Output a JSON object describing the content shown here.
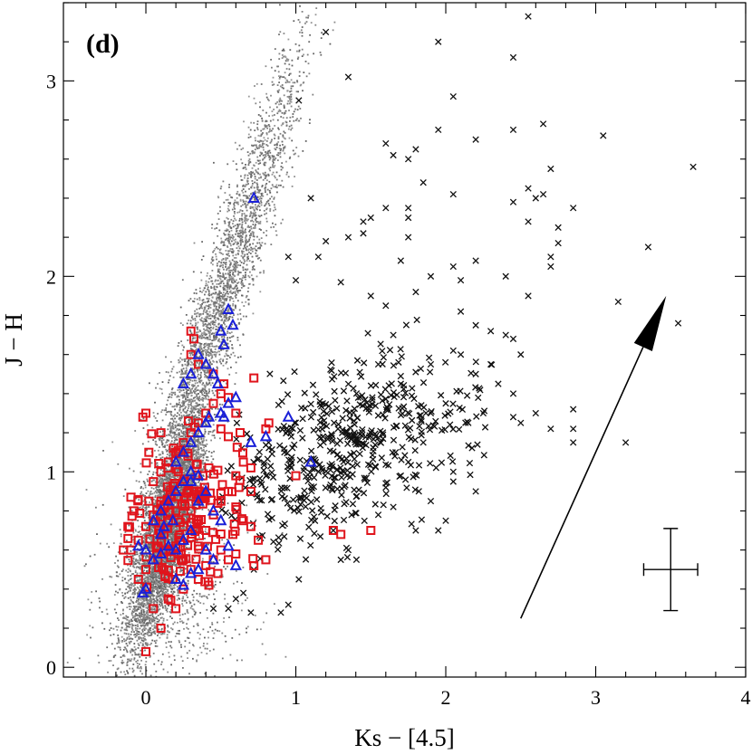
{
  "chart_data": {
    "type": "scatter",
    "panel_label": "(d)",
    "xlabel": "Ks − [4.5]",
    "ylabel": "J − H",
    "xlim": [
      -0.55,
      4.0
    ],
    "ylim": [
      -0.05,
      3.4
    ],
    "x_ticks": [
      {
        "value": 0,
        "label": "0"
      },
      {
        "value": 1,
        "label": "1"
      },
      {
        "value": 2,
        "label": "2"
      },
      {
        "value": 3,
        "label": "3"
      },
      {
        "value": 4,
        "label": "4"
      }
    ],
    "y_ticks": [
      {
        "value": 0,
        "label": "0"
      },
      {
        "value": 1,
        "label": "1"
      },
      {
        "value": 2,
        "label": "2"
      },
      {
        "value": 3,
        "label": "3"
      }
    ],
    "colors": {
      "field_points": "#8c8c8c",
      "crosses": "#111111",
      "squares": "#e0141c",
      "triangles": "#1a20d8",
      "axes": "#000000"
    },
    "reddening_vector": {
      "x0": 2.5,
      "y0": 0.25,
      "x1": 3.47,
      "y1": 1.9
    },
    "typical_error": {
      "x": 3.5,
      "y": 0.5,
      "xerr": 0.18,
      "yerr": 0.21
    },
    "series": [
      {
        "name": "field stars",
        "marker": "dot",
        "note": "dense grey cloud, generated from these density components",
        "components": [
          {
            "n": 5200,
            "cx": 0.15,
            "cy": 0.72,
            "sx": 0.14,
            "sy": 0.3,
            "dir": 0.78,
            "slope": 2.3
          },
          {
            "n": 2600,
            "cx": 0.45,
            "cy": 1.75,
            "sx": 0.16,
            "sy": 0.55,
            "dir": 1.0,
            "slope": 2.3
          },
          {
            "n": 700,
            "cx": 0.2,
            "cy": 0.4,
            "sx": 0.25,
            "sy": 0.3,
            "dir": 0.0,
            "slope": 0.0
          },
          {
            "n": 500,
            "cx": 0.75,
            "cy": 2.6,
            "sx": 0.15,
            "sy": 0.45,
            "dir": 1.0,
            "slope": 2.3
          }
        ]
      },
      {
        "name": "crosses",
        "marker": "x",
        "points": [
          [
            1.2,
            3.25
          ],
          [
            2.55,
            3.33
          ],
          [
            1.95,
            3.2
          ],
          [
            1.35,
            3.02
          ],
          [
            2.45,
            3.12
          ],
          [
            1.02,
            2.9
          ],
          [
            2.05,
            2.92
          ],
          [
            1.95,
            2.75
          ],
          [
            2.45,
            2.75
          ],
          [
            2.65,
            2.78
          ],
          [
            3.05,
            2.72
          ],
          [
            2.2,
            2.7
          ],
          [
            1.6,
            2.68
          ],
          [
            1.8,
            2.65
          ],
          [
            1.65,
            2.62
          ],
          [
            1.75,
            2.6
          ],
          [
            2.7,
            2.55
          ],
          [
            3.65,
            2.56
          ],
          [
            2.55,
            2.45
          ],
          [
            1.85,
            2.48
          ],
          [
            2.6,
            2.4
          ],
          [
            2.05,
            2.42
          ],
          [
            2.45,
            2.38
          ],
          [
            2.65,
            2.42
          ],
          [
            1.1,
            2.4
          ],
          [
            1.6,
            2.35
          ],
          [
            2.85,
            2.35
          ],
          [
            1.5,
            2.3
          ],
          [
            1.45,
            2.28
          ],
          [
            2.55,
            2.28
          ],
          [
            1.75,
            2.3
          ],
          [
            2.75,
            2.25
          ],
          [
            3.35,
            2.15
          ],
          [
            2.75,
            2.17
          ],
          [
            2.7,
            2.1
          ],
          [
            1.35,
            2.2
          ],
          [
            1.2,
            2.18
          ],
          [
            1.75,
            2.2
          ],
          [
            2.2,
            2.08
          ],
          [
            2.05,
            2.05
          ],
          [
            1.7,
            2.08
          ],
          [
            1.15,
            2.1
          ],
          [
            2.1,
            1.98
          ],
          [
            2.7,
            2.05
          ],
          [
            1.9,
            2.0
          ],
          [
            1.0,
            1.98
          ],
          [
            1.3,
            1.97
          ],
          [
            0.95,
            2.1
          ],
          [
            2.4,
            2.0
          ],
          [
            3.15,
            1.87
          ],
          [
            3.55,
            1.76
          ],
          [
            2.55,
            1.9
          ],
          [
            1.8,
            1.92
          ],
          [
            1.6,
            1.85
          ],
          [
            1.5,
            1.9
          ],
          [
            2.2,
            1.75
          ],
          [
            2.1,
            1.82
          ],
          [
            2.4,
            1.7
          ],
          [
            2.3,
            1.72
          ],
          [
            2.45,
            1.68
          ],
          [
            2.5,
            1.6
          ],
          [
            2.05,
            1.62
          ],
          [
            1.9,
            1.55
          ],
          [
            2.2,
            1.5
          ],
          [
            2.35,
            1.45
          ],
          [
            2.45,
            1.4
          ],
          [
            2.6,
            1.3
          ],
          [
            2.85,
            1.32
          ],
          [
            2.85,
            1.22
          ],
          [
            2.85,
            1.15
          ],
          [
            3.2,
            1.15
          ],
          [
            2.7,
            1.22
          ],
          [
            2.5,
            1.25
          ],
          [
            2.45,
            1.28
          ],
          [
            2.25,
            1.3
          ],
          [
            2.0,
            1.35
          ],
          [
            1.7,
            1.45
          ],
          [
            1.85,
            1.15
          ],
          [
            1.75,
            1.05
          ],
          [
            2.05,
            1.0
          ],
          [
            2.2,
            0.9
          ],
          [
            2.05,
            0.95
          ],
          [
            1.9,
            0.85
          ],
          [
            1.65,
            0.82
          ],
          [
            1.95,
            0.7
          ],
          [
            2.0,
            0.75
          ],
          [
            1.8,
            0.7
          ],
          [
            1.55,
            0.78
          ],
          [
            1.3,
            0.55
          ],
          [
            1.35,
            0.6
          ],
          [
            1.25,
            0.7
          ],
          [
            0.9,
            0.28
          ],
          [
            0.95,
            0.32
          ],
          [
            1.02,
            0.45
          ],
          [
            0.72,
            0.5
          ],
          [
            0.6,
            0.35
          ],
          [
            0.65,
            0.38
          ],
          [
            0.45,
            0.3
          ],
          [
            0.55,
            0.3
          ],
          [
            0.7,
            0.28
          ],
          [
            1.6,
            0.92
          ],
          [
            1.7,
            0.98
          ],
          [
            1.5,
            1.2
          ],
          [
            1.55,
            1.55
          ],
          [
            1.65,
            1.7
          ],
          [
            2.3,
            1.55
          ],
          [
            2.1,
            1.6
          ],
          [
            1.75,
            2.35
          ],
          [
            1.45,
            2.22
          ],
          [
            2.15,
            1.25
          ],
          [
            1.9,
            1.3
          ]
        ],
        "cluster": {
          "n": 540,
          "cx": 1.35,
          "cy": 1.12,
          "sx": 0.42,
          "sy": 0.24,
          "rho": 0.45,
          "xmin": 0.5,
          "xmax": 2.4,
          "ymin": 0.5,
          "ymax": 2.0
        }
      },
      {
        "name": "squares",
        "marker": "square",
        "points": [
          [
            0.0,
            0.08
          ],
          [
            0.1,
            0.2
          ],
          [
            0.05,
            0.3
          ],
          [
            0.15,
            0.35
          ],
          [
            0.2,
            0.3
          ],
          [
            0.25,
            0.4
          ],
          [
            -0.05,
            0.45
          ],
          [
            0.0,
            0.5
          ],
          [
            0.08,
            0.55
          ],
          [
            0.12,
            0.5
          ],
          [
            0.18,
            0.45
          ],
          [
            0.3,
            0.5
          ],
          [
            0.35,
            0.45
          ],
          [
            0.4,
            0.52
          ],
          [
            0.45,
            0.55
          ],
          [
            0.5,
            0.6
          ],
          [
            0.55,
            0.55
          ],
          [
            0.6,
            0.58
          ],
          [
            0.48,
            0.48
          ],
          [
            0.42,
            0.42
          ],
          [
            -0.1,
            0.6
          ],
          [
            -0.05,
            0.65
          ],
          [
            0.0,
            0.72
          ],
          [
            -0.12,
            0.72
          ],
          [
            -0.15,
            0.6
          ],
          [
            -0.08,
            0.8
          ],
          [
            -0.1,
            0.87
          ],
          [
            0.05,
            0.78
          ],
          [
            0.1,
            0.85
          ],
          [
            0.15,
            0.75
          ],
          [
            0.2,
            0.8
          ],
          [
            0.25,
            0.72
          ],
          [
            0.3,
            0.8
          ],
          [
            0.35,
            0.75
          ],
          [
            0.4,
            0.7
          ],
          [
            0.45,
            0.78
          ],
          [
            0.5,
            0.85
          ],
          [
            0.55,
            0.9
          ],
          [
            0.6,
            0.82
          ],
          [
            0.65,
            0.75
          ],
          [
            0.7,
            0.72
          ],
          [
            0.75,
            0.65
          ],
          [
            0.72,
            0.52
          ],
          [
            0.58,
            0.68
          ],
          [
            0.05,
            0.95
          ],
          [
            0.1,
            1.0
          ],
          [
            0.15,
            1.05
          ],
          [
            0.2,
            1.1
          ],
          [
            0.25,
            1.15
          ],
          [
            0.3,
            1.2
          ],
          [
            0.35,
            1.25
          ],
          [
            0.4,
            1.3
          ],
          [
            0.45,
            1.35
          ],
          [
            0.5,
            1.4
          ],
          [
            0.55,
            1.38
          ],
          [
            0.6,
            1.3
          ],
          [
            0.65,
            1.05
          ],
          [
            0.7,
            1.02
          ],
          [
            0.02,
            1.1
          ],
          [
            0.0,
            1.3
          ],
          [
            -0.02,
            1.28
          ],
          [
            0.32,
            1.68
          ],
          [
            0.3,
            1.72
          ],
          [
            0.3,
            1.6
          ],
          [
            0.35,
            1.55
          ],
          [
            0.45,
            1.5
          ],
          [
            0.52,
            1.45
          ],
          [
            0.72,
            1.48
          ],
          [
            0.82,
            1.25
          ],
          [
            0.8,
            1.22
          ],
          [
            1.0,
            0.98
          ],
          [
            1.25,
            0.7
          ],
          [
            1.3,
            0.68
          ],
          [
            1.5,
            0.7
          ],
          [
            0.8,
            0.55
          ],
          [
            0.7,
            0.9
          ],
          [
            0.62,
            0.92
          ],
          [
            0.55,
            1.18
          ],
          [
            0.5,
            1.22
          ],
          [
            0.25,
            0.95
          ],
          [
            0.28,
            0.9
          ],
          [
            0.08,
            0.62
          ],
          [
            0.12,
            0.68
          ],
          [
            0.2,
            0.62
          ],
          [
            0.22,
            0.58
          ],
          [
            0.16,
            0.88
          ],
          [
            0.1,
            1.2
          ],
          [
            0.38,
            0.98
          ],
          [
            0.42,
            1.02
          ],
          [
            0.6,
            0.98
          ],
          [
            0.25,
            0.55
          ],
          [
            0.35,
            0.62
          ],
          [
            0.02,
            0.85
          ]
        ],
        "cluster": {
          "n": 140,
          "cx": 0.25,
          "cy": 0.78,
          "sx": 0.18,
          "sy": 0.22,
          "rho": 0.25,
          "xmin": -0.2,
          "xmax": 0.75,
          "ymin": 0.25,
          "ymax": 1.4
        }
      },
      {
        "name": "triangles",
        "marker": "triangle",
        "points": [
          [
            0.72,
            2.4
          ],
          [
            0.55,
            1.83
          ],
          [
            0.58,
            1.75
          ],
          [
            0.5,
            1.72
          ],
          [
            0.52,
            1.65
          ],
          [
            0.35,
            1.6
          ],
          [
            0.4,
            1.55
          ],
          [
            0.45,
            1.5
          ],
          [
            0.48,
            1.45
          ],
          [
            0.3,
            1.5
          ],
          [
            0.25,
            1.45
          ],
          [
            0.55,
            1.35
          ],
          [
            0.6,
            1.38
          ],
          [
            0.5,
            1.3
          ],
          [
            0.52,
            1.28
          ],
          [
            0.4,
            1.25
          ],
          [
            0.42,
            1.28
          ],
          [
            0.35,
            1.2
          ],
          [
            0.3,
            1.15
          ],
          [
            0.25,
            1.1
          ],
          [
            0.2,
            1.05
          ],
          [
            0.95,
            1.28
          ],
          [
            0.8,
            1.18
          ],
          [
            0.7,
            1.15
          ],
          [
            1.1,
            1.05
          ],
          [
            0.3,
            1.0
          ],
          [
            0.25,
            0.95
          ],
          [
            0.2,
            0.9
          ],
          [
            0.15,
            0.85
          ],
          [
            0.1,
            0.8
          ],
          [
            0.05,
            0.75
          ],
          [
            0.35,
            0.85
          ],
          [
            0.4,
            0.9
          ],
          [
            0.45,
            0.8
          ],
          [
            0.5,
            0.75
          ],
          [
            0.3,
            0.7
          ],
          [
            0.25,
            0.65
          ],
          [
            0.2,
            0.6
          ],
          [
            0.15,
            0.62
          ],
          [
            0.1,
            0.58
          ],
          [
            0.05,
            0.55
          ],
          [
            0.0,
            0.6
          ],
          [
            -0.05,
            0.62
          ],
          [
            0.4,
            0.6
          ],
          [
            0.45,
            0.55
          ],
          [
            0.35,
            0.5
          ],
          [
            0.3,
            0.48
          ],
          [
            0.25,
            0.42
          ],
          [
            0.2,
            0.45
          ],
          [
            0.0,
            0.4
          ],
          [
            -0.02,
            0.38
          ],
          [
            0.3,
            0.95
          ],
          [
            0.35,
            0.98
          ],
          [
            0.55,
            0.62
          ],
          [
            0.6,
            0.52
          ],
          [
            0.12,
            0.72
          ],
          [
            0.18,
            0.75
          ],
          [
            0.1,
            0.68
          ]
        ]
      }
    ]
  }
}
